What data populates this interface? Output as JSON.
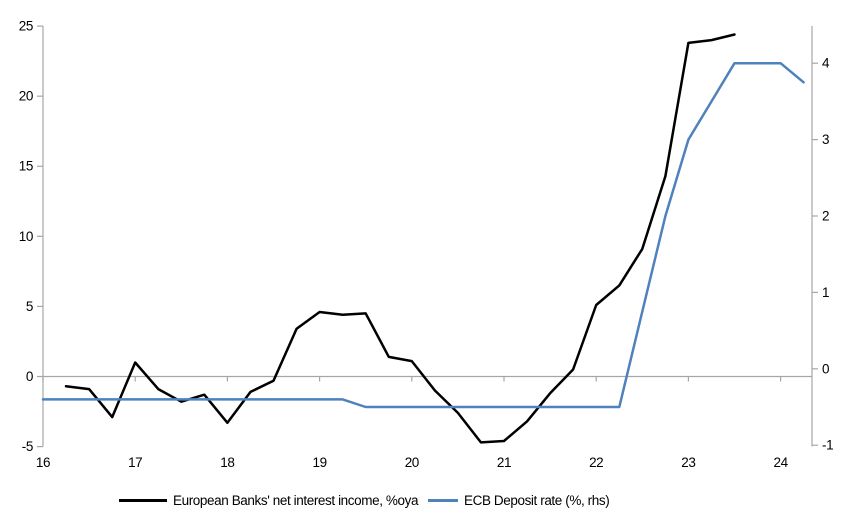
{
  "chart_data": {
    "type": "line",
    "title": "",
    "x_axis": {
      "ticks": [
        "16",
        "17",
        "18",
        "19",
        "20",
        "21",
        "22",
        "23",
        "24"
      ],
      "tick_values": [
        16,
        17,
        18,
        19,
        20,
        21,
        22,
        23,
        24
      ],
      "range": [
        16,
        24.34
      ]
    },
    "left_axis": {
      "ticks": [
        "25",
        "20",
        "15",
        "10",
        "5",
        "0",
        "-5"
      ],
      "tick_values": [
        25,
        20,
        15,
        10,
        5,
        0,
        -5
      ],
      "range": [
        -5,
        25
      ]
    },
    "right_axis": {
      "ticks": [
        "4",
        "3",
        "2",
        "1",
        "0",
        "-1"
      ],
      "tick_values": [
        4,
        3,
        2,
        1,
        0,
        -1
      ],
      "range": [
        -1,
        4.5
      ]
    },
    "grid": "zero-line-only",
    "legend_position": "bottom",
    "series": [
      {
        "name": "European Banks' net interest income, %oya",
        "axis": "left",
        "color": "#000000",
        "x": [
          16.25,
          16.5,
          16.75,
          17.0,
          17.25,
          17.5,
          17.75,
          18.0,
          18.25,
          18.5,
          18.75,
          19.0,
          19.25,
          19.5,
          19.75,
          20.0,
          20.25,
          20.5,
          20.75,
          21.0,
          21.25,
          21.5,
          21.75,
          22.0,
          22.25,
          22.5,
          22.75,
          23.0,
          23.25,
          23.5
        ],
        "values": [
          -0.7,
          -0.9,
          -2.9,
          1.0,
          -0.9,
          -1.8,
          -1.3,
          -3.3,
          -1.1,
          -0.3,
          3.4,
          4.6,
          4.4,
          4.5,
          1.4,
          1.1,
          -1.0,
          -2.6,
          -4.7,
          -4.6,
          -3.2,
          -1.2,
          0.5,
          5.1,
          6.5,
          9.1,
          14.3,
          23.8,
          24.0,
          24.4
        ]
      },
      {
        "name": "ECB Deposit rate (%, rhs)",
        "axis": "right",
        "color": "#4f81bd",
        "x": [
          16.0,
          16.25,
          16.5,
          16.75,
          17.0,
          17.25,
          17.5,
          17.75,
          18.0,
          18.25,
          18.5,
          18.75,
          19.0,
          19.25,
          19.5,
          19.75,
          20.0,
          20.25,
          20.5,
          20.75,
          21.0,
          21.25,
          21.5,
          21.75,
          22.0,
          22.25,
          22.5,
          22.75,
          23.0,
          23.25,
          23.5,
          23.75,
          24.0,
          24.25
        ],
        "values": [
          -0.4,
          -0.4,
          -0.4,
          -0.4,
          -0.4,
          -0.4,
          -0.4,
          -0.4,
          -0.4,
          -0.4,
          -0.4,
          -0.4,
          -0.4,
          -0.4,
          -0.5,
          -0.5,
          -0.5,
          -0.5,
          -0.5,
          -0.5,
          -0.5,
          -0.5,
          -0.5,
          -0.5,
          -0.5,
          -0.5,
          0.75,
          2.0,
          3.0,
          3.5,
          4.0,
          4.0,
          4.0,
          3.75
        ]
      }
    ]
  },
  "colors": {
    "axis": "#a6a6a6",
    "gridline": "#a6a6a6",
    "text": "#000000",
    "background": "#ffffff"
  }
}
